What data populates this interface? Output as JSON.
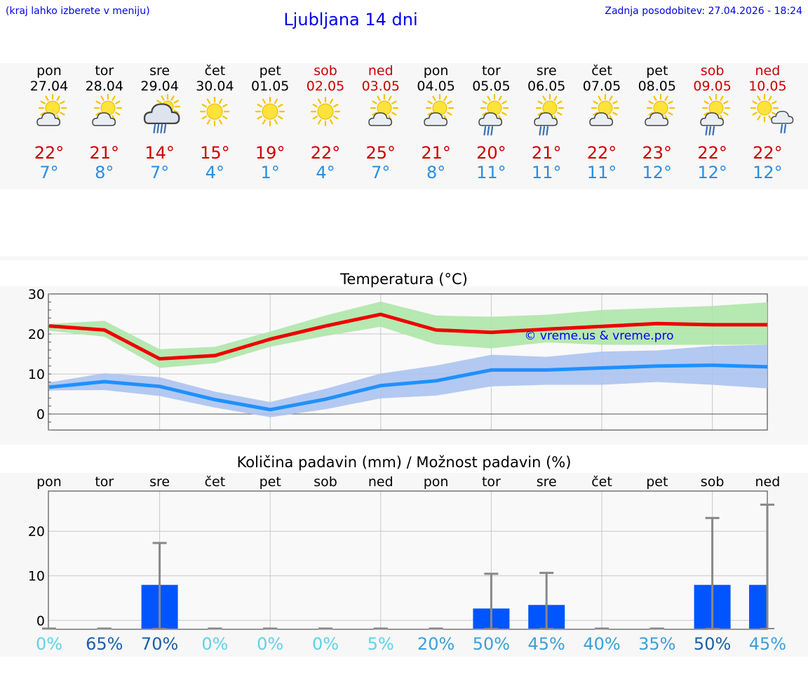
{
  "header": {
    "menu_hint": "(kraj lahko izberete v meniju)",
    "title": "Ljubljana 14 dni",
    "updated": "Zadnja posodobitev: 27.04.2026 - 18:24"
  },
  "days": [
    {
      "name": "pon",
      "date": "27.04",
      "tmax": "22°",
      "tmin": "7°",
      "weekend": false,
      "icon": "sun-cloud-icon"
    },
    {
      "name": "tor",
      "date": "28.04",
      "tmax": "21°",
      "tmin": "8°",
      "weekend": false,
      "icon": "sun-cloud-icon"
    },
    {
      "name": "sre",
      "date": "29.04",
      "tmax": "14°",
      "tmin": "7°",
      "weekend": false,
      "icon": "rain-cloud-icon"
    },
    {
      "name": "čet",
      "date": "30.04",
      "tmax": "15°",
      "tmin": "4°",
      "weekend": false,
      "icon": "sun-icon"
    },
    {
      "name": "pet",
      "date": "01.05",
      "tmax": "19°",
      "tmin": "1°",
      "weekend": false,
      "icon": "sun-icon"
    },
    {
      "name": "sob",
      "date": "02.05",
      "tmax": "22°",
      "tmin": "4°",
      "weekend": true,
      "icon": "sun-icon"
    },
    {
      "name": "ned",
      "date": "03.05",
      "tmax": "25°",
      "tmin": "7°",
      "weekend": true,
      "icon": "sun-cloud-icon"
    },
    {
      "name": "pon",
      "date": "04.05",
      "tmax": "21°",
      "tmin": "8°",
      "weekend": false,
      "icon": "sun-cloud-icon"
    },
    {
      "name": "tor",
      "date": "05.05",
      "tmax": "20°",
      "tmin": "11°",
      "weekend": false,
      "icon": "sun-rain-icon"
    },
    {
      "name": "sre",
      "date": "06.05",
      "tmax": "21°",
      "tmin": "11°",
      "weekend": false,
      "icon": "sun-rain-icon"
    },
    {
      "name": "čet",
      "date": "07.05",
      "tmax": "22°",
      "tmin": "11°",
      "weekend": false,
      "icon": "sun-cloud-icon"
    },
    {
      "name": "pet",
      "date": "08.05",
      "tmax": "23°",
      "tmin": "12°",
      "weekend": false,
      "icon": "sun-cloud-icon"
    },
    {
      "name": "sob",
      "date": "09.05",
      "tmax": "22°",
      "tmin": "12°",
      "weekend": true,
      "icon": "sun-rain-icon"
    },
    {
      "name": "ned",
      "date": "10.05",
      "tmax": "22°",
      "tmin": "12°",
      "weekend": true,
      "icon": "sun-rain-light-icon"
    }
  ],
  "colors": {
    "max_line": "#ee0000",
    "max_band": "#aee6a8",
    "min_line": "#1e90ff",
    "min_band": "#abc3f0",
    "bar": "#0055ff",
    "whisker": "#888888",
    "weekend": "#cc0000",
    "tmin_text": "#2a8ee0",
    "link": "#0000ee"
  },
  "chart_data": [
    {
      "type": "line",
      "title": "Temperatura (°C)",
      "watermark": "© vreme.us & vreme.pro",
      "ylim": [
        -4,
        30
      ],
      "yticks": [
        0,
        10,
        20,
        30
      ],
      "grid": true,
      "series": [
        {
          "values": [
            22,
            21,
            13.8,
            14.6,
            18.7,
            22,
            24.9,
            21,
            20.4,
            21.2,
            21.9,
            22.6,
            22.3,
            22.3
          ],
          "upper": [
            22.5,
            23.3,
            16.2,
            16.8,
            20.6,
            24.6,
            28.1,
            24.6,
            24.3,
            24.8,
            26.0,
            26.5,
            27.0,
            27.9
          ],
          "lower": [
            20.8,
            19.3,
            11.5,
            12.7,
            16.8,
            19.5,
            21.8,
            17.4,
            16.4,
            17.9,
            17.3,
            17.3,
            17.3,
            17.3
          ]
        },
        {
          "values": [
            6.7,
            8.1,
            6.9,
            3.6,
            1.1,
            3.7,
            7.1,
            8.3,
            11,
            11,
            11.5,
            12,
            12.2,
            11.8
          ],
          "upper": [
            7.9,
            10.2,
            9.2,
            5.6,
            3.0,
            6.3,
            10.1,
            12.1,
            14.8,
            14.3,
            15.6,
            15.9,
            17.0,
            17.3
          ],
          "lower": [
            5.9,
            6.0,
            4.5,
            1.6,
            -0.8,
            1.2,
            3.9,
            4.6,
            6.9,
            7.3,
            7.3,
            8.0,
            7.3,
            6.4
          ]
        }
      ]
    },
    {
      "type": "bar",
      "title": "Količina padavin (mm) / Možnost padavin (%)",
      "ylim": [
        -2,
        29
      ],
      "yticks": [
        0,
        10,
        20
      ],
      "grid": true,
      "categories": [
        "pon",
        "tor",
        "sre",
        "čet",
        "pet",
        "sob",
        "ned",
        "pon",
        "tor",
        "sre",
        "čet",
        "pet",
        "sob",
        "ned"
      ],
      "values": [
        0,
        0,
        9.8,
        0,
        0,
        0,
        0,
        0,
        4.5,
        5.3,
        0,
        0,
        9.8,
        9.8
      ],
      "error_high": [
        0,
        0,
        19.2,
        0,
        0,
        0,
        0,
        0,
        12.3,
        12.5,
        0,
        0,
        24.8,
        27.8
      ],
      "error_low": [
        0,
        0,
        0,
        0,
        0,
        0,
        0,
        0,
        0,
        0,
        0,
        0,
        0,
        0
      ],
      "probability": [
        "0%",
        "65%",
        "70%",
        "0%",
        "0%",
        "0%",
        "5%",
        "20%",
        "50%",
        "45%",
        "40%",
        "35%",
        "50%",
        "45%"
      ],
      "probability_colors": [
        "#5fd3e6",
        "#1b5fa8",
        "#1b5fa8",
        "#5fd3e6",
        "#5fd3e6",
        "#5fd3e6",
        "#5fd3e6",
        "#3aa0d8",
        "#3aa0d8",
        "#3aa0d8",
        "#3aa0d8",
        "#3aa0d8",
        "#1b5fa8",
        "#3aa0d8"
      ]
    }
  ]
}
